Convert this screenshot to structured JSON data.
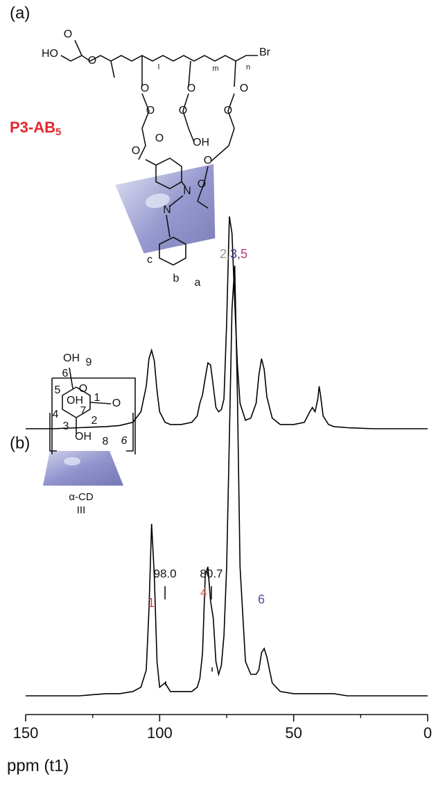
{
  "chart_data": [
    {
      "type": "line",
      "panel_label": "(a)",
      "x": [
        150,
        140,
        130,
        120,
        115,
        110,
        107,
        105,
        104,
        103,
        102,
        101,
        100,
        98,
        96,
        92,
        88,
        86,
        85,
        84,
        83,
        82,
        81,
        80,
        79,
        78,
        77,
        76,
        75,
        74,
        73,
        72,
        71,
        70,
        68,
        66,
        64,
        63,
        62,
        61,
        60,
        58,
        55,
        50,
        46,
        44,
        43,
        42,
        41,
        40.5,
        40,
        39,
        37,
        35,
        30,
        20,
        10,
        0
      ],
      "series": [
        {
          "color": "#000000",
          "values": [
            0,
            0,
            0.5,
            1,
            1.5,
            3,
            8,
            20,
            33,
            37,
            32,
            18,
            8,
            3,
            2,
            2,
            3,
            6,
            12,
            16,
            24,
            31,
            30,
            20,
            10,
            8,
            9,
            14,
            50,
            100,
            92,
            60,
            30,
            12,
            4,
            5,
            12,
            25,
            33,
            28,
            15,
            5,
            2,
            2,
            3,
            8,
            10,
            8,
            14,
            20,
            16,
            6,
            2,
            1,
            0.5,
            0,
            0,
            0
          ]
        }
      ],
      "xlim": [
        150,
        0
      ],
      "ylim": [
        0,
        100
      ],
      "compound_label": {
        "text": "P3-AB",
        "subscript": "5",
        "color": "#e0282e"
      },
      "structure_labels": [
        {
          "text": "HO"
        },
        {
          "text": "O"
        },
        {
          "text": "O"
        },
        {
          "text": "Br"
        },
        {
          "text": "l"
        },
        {
          "text": "m"
        },
        {
          "text": "n"
        },
        {
          "text": "O"
        },
        {
          "text": "O"
        },
        {
          "text": "O"
        },
        {
          "text": "O"
        },
        {
          "text": "O"
        },
        {
          "text": "O"
        },
        {
          "text": "OH"
        },
        {
          "text": "O"
        },
        {
          "text": "O"
        },
        {
          "text": "O"
        },
        {
          "text": "O"
        },
        {
          "text": "N"
        },
        {
          "text": "N"
        },
        {
          "text": "a",
          "color": "#e0282e"
        },
        {
          "text": "b",
          "color": "#9a8f86"
        },
        {
          "text": "c",
          "color": "#3b3f8e"
        }
      ]
    },
    {
      "type": "line",
      "panel_label": "(b)",
      "x": [
        150,
        140,
        130,
        120,
        115,
        110,
        107,
        105,
        104,
        103,
        102,
        101,
        100,
        98,
        96,
        92,
        88,
        86,
        85,
        84,
        83,
        82,
        81,
        80,
        79,
        78,
        77,
        76,
        75,
        74,
        73,
        72,
        71,
        70,
        68,
        66,
        64,
        63,
        62,
        61,
        60,
        58,
        55,
        50,
        46,
        44,
        43,
        42,
        41,
        40.5,
        40,
        39,
        37,
        35,
        30,
        20,
        10,
        0
      ],
      "series": [
        {
          "color": "#000000",
          "values": [
            0,
            0,
            0,
            0.5,
            0.5,
            1,
            2,
            6,
            20,
            40,
            28,
            8,
            2,
            3,
            1,
            1,
            1,
            2,
            4,
            10,
            28,
            30,
            22,
            18,
            8,
            5,
            7,
            14,
            30,
            60,
            90,
            100,
            70,
            30,
            8,
            5,
            5,
            6,
            10,
            11,
            9,
            3,
            1,
            0.5,
            0.5,
            0.5,
            0.5,
            0.5,
            0.5,
            0.5,
            0.5,
            0.5,
            0.5,
            0.5,
            0,
            0,
            0,
            0
          ]
        }
      ],
      "xlim": [
        150,
        0
      ],
      "ylim": [
        0,
        100
      ],
      "xticks": [
        150,
        100,
        50,
        0
      ],
      "xminorticks": [
        125,
        75,
        25
      ],
      "xlabel": "ppm (t1)",
      "annotations": [
        {
          "text": "98.0",
          "x": 98.0
        },
        {
          "text": "80.7",
          "x": 80.7
        }
      ],
      "peak_labels": [
        {
          "parts": [
            {
              "text": "1",
              "color": "#d8393b"
            }
          ]
        },
        {
          "parts": [
            {
              "text": "4",
              "color": "#e06455"
            }
          ]
        },
        {
          "parts": [
            {
              "text": "2",
              "color": "#9a8f86"
            },
            {
              "text": ",",
              "color": "#555555"
            },
            {
              "text": "3",
              "color": "#3b3f8e"
            },
            {
              "text": ",",
              "color": "#555555"
            },
            {
              "text": "5",
              "color": "#c0307e"
            }
          ]
        },
        {
          "parts": [
            {
              "text": "6",
              "color": "#5a4c9c"
            }
          ]
        }
      ],
      "cd_label": "α-CD",
      "cd_index": "III",
      "structure_labels": [
        {
          "text": "OH"
        },
        {
          "text": "9",
          "color": "#8c7a6a"
        },
        {
          "text": "6",
          "color": "#5a4c9c"
        },
        {
          "text": "5",
          "color": "#c0307e"
        },
        {
          "text": "O"
        },
        {
          "text": "1",
          "color": "#d8393b"
        },
        {
          "text": "O"
        },
        {
          "text": "OH"
        },
        {
          "text": "7",
          "color": "#2e9a6e"
        },
        {
          "text": "4",
          "color": "#e06455"
        },
        {
          "text": "2",
          "color": "#9a8f86"
        },
        {
          "text": "3",
          "color": "#3b3f8e"
        },
        {
          "text": "OH"
        },
        {
          "text": "8",
          "color": "#1aa8c8"
        },
        {
          "text": "6"
        }
      ]
    }
  ]
}
